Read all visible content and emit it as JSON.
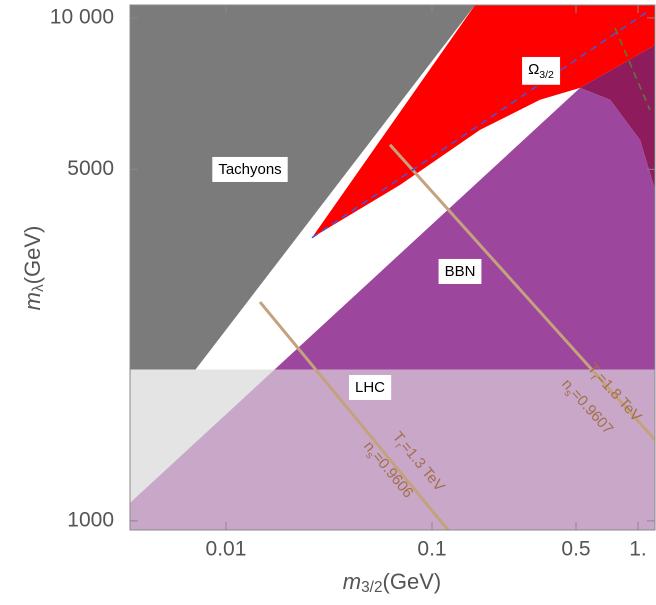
{
  "chart_data": {
    "type": "region",
    "xlabel": [
      "m",
      "3/2",
      "(GeV)"
    ],
    "ylabel": [
      "m",
      "λ",
      "(GeV)"
    ],
    "xscale": "log",
    "yscale": "log",
    "xlim": [
      0.00342,
      1.209
    ],
    "ylim": [
      959,
      10610
    ],
    "xticks": [
      0.01,
      0.1,
      0.5,
      {
        "value": 1,
        "label": "1."
      }
    ],
    "yticks": [
      1000,
      5000,
      {
        "value": 10000,
        "label": "10 000"
      }
    ],
    "regions": [
      {
        "label": [
          "Tachyons"
        ],
        "color": "#7b7b7b",
        "x": [
          0.00342,
          0.1618,
          0.00342
        ],
        "y": [
          1352,
          10610,
          10610
        ]
      },
      {
        "label": [
          "Ω",
          "3/2"
        ],
        "color": "#ff0000",
        "x": [
          0.02613,
          0.1618,
          1.209,
          1.209,
          0.523,
          0.3345,
          0.171,
          0.07
        ],
        "y": [
          3655,
          10610,
          10610,
          8830,
          7260,
          6875,
          5990,
          4656
        ]
      },
      {
        "color": "#8e1b5c",
        "x": [
          0.523,
          1.209,
          1.209,
          1.023,
          0.732
        ],
        "y": [
          7260,
          8830,
          4550,
          5720,
          6875
        ]
      },
      {
        "label": [
          "BBN"
        ],
        "color": "#9d469d",
        "x": [
          0.00342,
          0.523,
          0.732,
          1.023,
          1.209,
          1.209,
          0.00342
        ],
        "y": [
          1086,
          7260,
          6875,
          5720,
          4550,
          959,
          959
        ]
      },
      {
        "label": [
          "LHC"
        ],
        "color": "#e4e4e4",
        "overlap_color": "#c9a7c9",
        "x": [
          0.00342,
          1.209,
          1.209,
          0.00342
        ],
        "y": [
          959,
          959,
          2000,
          2000
        ]
      }
    ],
    "lines": [
      {
        "color": "#c4a27e",
        "label_color": "#a0704a",
        "labels": [
          [
            "T",
            "r",
            "=1.3 TeV"
          ],
          [
            "n",
            "s",
            "=0.9606"
          ]
        ],
        "x": [
          0.01463,
          0.1197
        ],
        "y": [
          2723,
          959
        ]
      },
      {
        "color": "#c4a27e",
        "label_color": "#a0704a",
        "labels": [
          [
            "T",
            "r",
            "=1.8 TeV"
          ],
          [
            "n",
            "s",
            "=0.9607"
          ]
        ],
        "x": [
          0.0625,
          1.209
        ],
        "y": [
          5595,
          1449
        ]
      },
      {
        "color": "#5050d0",
        "dash": true,
        "x": [
          0.02613,
          1.143
        ],
        "y": [
          3655,
          10370
        ]
      },
      {
        "color": "#5a7a3a",
        "dash": true,
        "x": [
          0.773,
          1.143
        ],
        "y": [
          9550,
          6560
        ]
      }
    ]
  }
}
